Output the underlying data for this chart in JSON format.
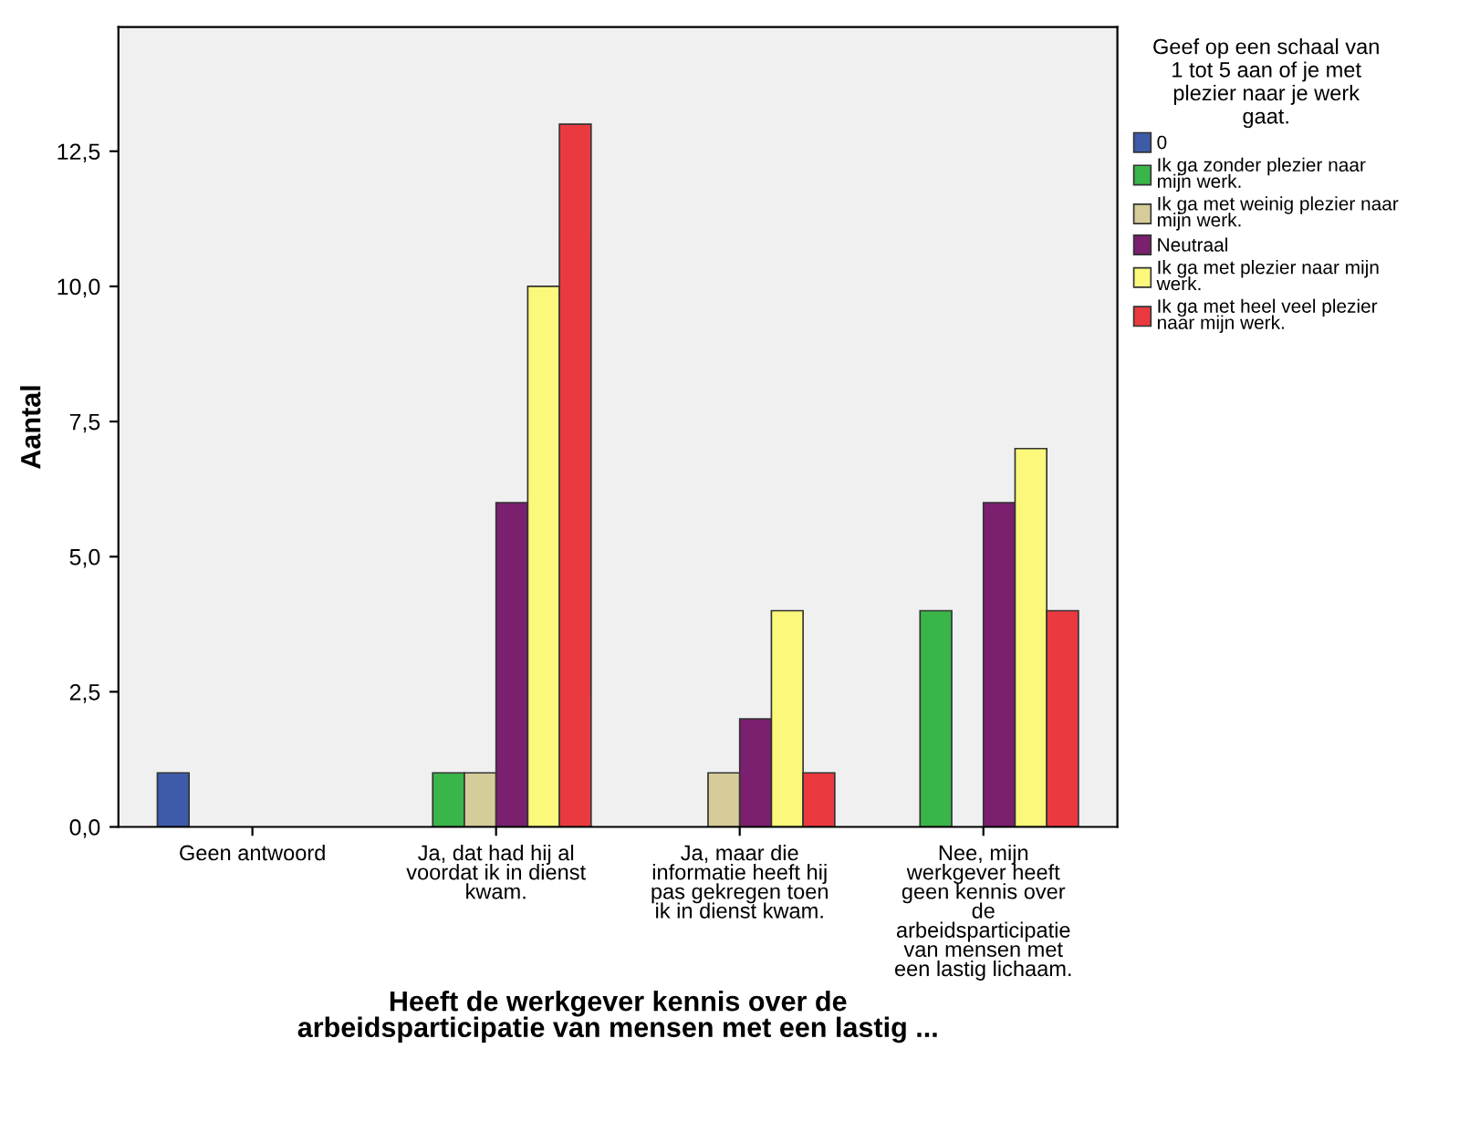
{
  "chart_data": {
    "type": "bar",
    "xlabel": "Heeft de werkgever kennis over de\narbeidsparticipatie van mensen met een lastig ...",
    "ylabel": "Aantal",
    "legend_title": "Geef op een schaal van\n1 tot 5 aan of je met\nplezier naar je werk\ngaat.",
    "categories": [
      "Geen antwoord",
      "Ja, dat had hij al\nvoordat ik in dienst\nkwam.",
      "Ja, maar die\ninformatie heeft hij\npas gekregen toen\nik in dienst kwam.",
      "Nee, mijn\nwerkgever heeft\ngeen kennis over\nde\narbeidsparticipatie\nvan mensen met\neen lastig lichaam."
    ],
    "series": [
      {
        "name": "0",
        "color": "#3e5ba9",
        "values": [
          1,
          null,
          null,
          null
        ]
      },
      {
        "name": "Ik ga zonder plezier naar\nmijn werk.",
        "color": "#3ab54a",
        "values": [
          null,
          1,
          null,
          4
        ]
      },
      {
        "name": "Ik ga met weinig plezier naar\nmijn werk.",
        "color": "#d6cc9a",
        "values": [
          null,
          1,
          1,
          null
        ]
      },
      {
        "name": "Neutraal",
        "color": "#7b1f6f",
        "values": [
          null,
          6,
          2,
          6
        ]
      },
      {
        "name": "Ik ga met plezier naar mijn\nwerk.",
        "color": "#fbf87b",
        "values": [
          null,
          10,
          4,
          7
        ]
      },
      {
        "name": "Ik ga met heel veel plezier\nnaar mijn werk.",
        "color": "#ea3a3f",
        "values": [
          null,
          13,
          1,
          4
        ]
      }
    ],
    "ylim": [
      0,
      14.8
    ],
    "yticks": [
      {
        "value": 0,
        "label": "0,0"
      },
      {
        "value": 2.5,
        "label": "2,5"
      },
      {
        "value": 5,
        "label": "5,0"
      },
      {
        "value": 7.5,
        "label": "7,5"
      },
      {
        "value": 10,
        "label": "10,0"
      },
      {
        "value": 12.5,
        "label": "12,5"
      }
    ],
    "grid": false,
    "legend": "right"
  }
}
